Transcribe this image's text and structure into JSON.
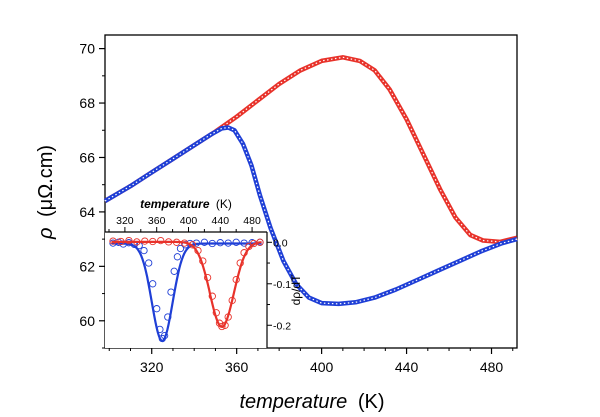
{
  "chart_data": [
    {
      "type": "line",
      "xlabel": {
        "italic": "temperature",
        "unit": "(K)"
      },
      "ylabel": {
        "symbol": "ρ",
        "unit": "(μΩ.cm)"
      },
      "xlim": [
        298,
        492
      ],
      "ylim": [
        59,
        70.5
      ],
      "xticks": [
        320,
        360,
        400,
        440,
        480
      ],
      "yticks": [
        60,
        62,
        64,
        66,
        68,
        70
      ],
      "x_tick_labels": [
        "320",
        "360",
        "400",
        "440",
        "480"
      ],
      "y_tick_labels": [
        "60",
        "62",
        "64",
        "66",
        "68",
        "70"
      ],
      "series": [
        {
          "color": "#e8322a",
          "style": "dashed-thick",
          "points": [
            [
              298,
              64.4
            ],
            [
              310,
              64.95
            ],
            [
              320,
              65.45
            ],
            [
              330,
              65.95
            ],
            [
              340,
              66.45
            ],
            [
              350,
              66.95
            ],
            [
              360,
              67.5
            ],
            [
              370,
              68.1
            ],
            [
              380,
              68.7
            ],
            [
              390,
              69.2
            ],
            [
              400,
              69.55
            ],
            [
              410,
              69.68
            ],
            [
              418,
              69.55
            ],
            [
              425,
              69.2
            ],
            [
              432,
              68.5
            ],
            [
              440,
              67.4
            ],
            [
              448,
              66.1
            ],
            [
              456,
              64.8
            ],
            [
              463,
              63.8
            ],
            [
              470,
              63.15
            ],
            [
              476,
              62.95
            ],
            [
              484,
              62.9
            ],
            [
              492,
              63.05
            ]
          ]
        },
        {
          "color": "#1f3fd6",
          "style": "solid",
          "points": [
            [
              298,
              64.4
            ],
            [
              310,
              64.95
            ],
            [
              320,
              65.45
            ],
            [
              330,
              65.95
            ],
            [
              340,
              66.45
            ],
            [
              348,
              66.85
            ],
            [
              353,
              67.07
            ],
            [
              356,
              67.1
            ],
            [
              359,
              67.0
            ],
            [
              363,
              66.5
            ],
            [
              367,
              65.7
            ],
            [
              371,
              64.6
            ],
            [
              376,
              63.4
            ],
            [
              382,
              62.2
            ],
            [
              388,
              61.35
            ],
            [
              394,
              60.85
            ],
            [
              400,
              60.65
            ],
            [
              408,
              60.62
            ],
            [
              416,
              60.68
            ],
            [
              425,
              60.85
            ],
            [
              435,
              61.15
            ],
            [
              445,
              61.5
            ],
            [
              455,
              61.85
            ],
            [
              465,
              62.2
            ],
            [
              475,
              62.55
            ],
            [
              485,
              62.85
            ],
            [
              492,
              63.0
            ]
          ]
        }
      ]
    },
    {
      "type": "line",
      "xlabel": {
        "italic": "temperature",
        "unit": "(K)"
      },
      "ylabel": "dρ/dT",
      "xlim": [
        300,
        495
      ],
      "ylim": [
        -0.25,
        0.02
      ],
      "xticks": [
        320,
        360,
        400,
        440,
        480
      ],
      "yticks": [
        0.0,
        -0.1,
        -0.2
      ],
      "x_tick_labels": [
        "320",
        "360",
        "400",
        "440",
        "480"
      ],
      "y_tick_labels": [
        "0.0",
        "-0.1",
        "-0.2"
      ],
      "series": [
        {
          "color": "#1f3fd6",
          "center": 367,
          "depth": -0.235,
          "width": 13,
          "baseline": -0.003,
          "circles": [
            [
              305,
              -0.002
            ],
            [
              312,
              0.0
            ],
            [
              318,
              -0.004
            ],
            [
              325,
              -0.001
            ],
            [
              332,
              -0.005
            ],
            [
              338,
              -0.008
            ],
            [
              344,
              -0.02
            ],
            [
              350,
              -0.05
            ],
            [
              355,
              -0.1
            ],
            [
              360,
              -0.16
            ],
            [
              364,
              -0.21
            ],
            [
              367,
              -0.232
            ],
            [
              370,
              -0.225
            ],
            [
              374,
              -0.18
            ],
            [
              378,
              -0.12
            ],
            [
              382,
              -0.07
            ],
            [
              386,
              -0.035
            ],
            [
              390,
              -0.015
            ],
            [
              396,
              -0.006
            ],
            [
              402,
              -0.003
            ],
            [
              410,
              -0.002
            ],
            [
              420,
              0.0
            ],
            [
              430,
              -0.003
            ],
            [
              440,
              -0.001
            ],
            [
              450,
              -0.002
            ],
            [
              460,
              0.0
            ],
            [
              470,
              -0.002
            ],
            [
              480,
              -0.001
            ],
            [
              490,
              0.0
            ]
          ]
        },
        {
          "color": "#e8322a",
          "center": 442,
          "depth": -0.205,
          "width": 15,
          "baseline": 0.001,
          "circles": [
            [
              305,
              0.003
            ],
            [
              315,
              0.002
            ],
            [
              325,
              0.004
            ],
            [
              335,
              0.001
            ],
            [
              345,
              0.003
            ],
            [
              355,
              0.002
            ],
            [
              365,
              0.004
            ],
            [
              375,
              0.001
            ],
            [
              385,
              0.0
            ],
            [
              395,
              -0.002
            ],
            [
              405,
              -0.006
            ],
            [
              412,
              -0.02
            ],
            [
              418,
              -0.045
            ],
            [
              424,
              -0.085
            ],
            [
              430,
              -0.13
            ],
            [
              435,
              -0.17
            ],
            [
              439,
              -0.195
            ],
            [
              442,
              -0.203
            ],
            [
              446,
              -0.2
            ],
            [
              450,
              -0.18
            ],
            [
              455,
              -0.14
            ],
            [
              460,
              -0.09
            ],
            [
              465,
              -0.05
            ],
            [
              470,
              -0.025
            ],
            [
              476,
              -0.01
            ],
            [
              482,
              -0.003
            ],
            [
              490,
              0.0
            ]
          ]
        }
      ]
    }
  ]
}
